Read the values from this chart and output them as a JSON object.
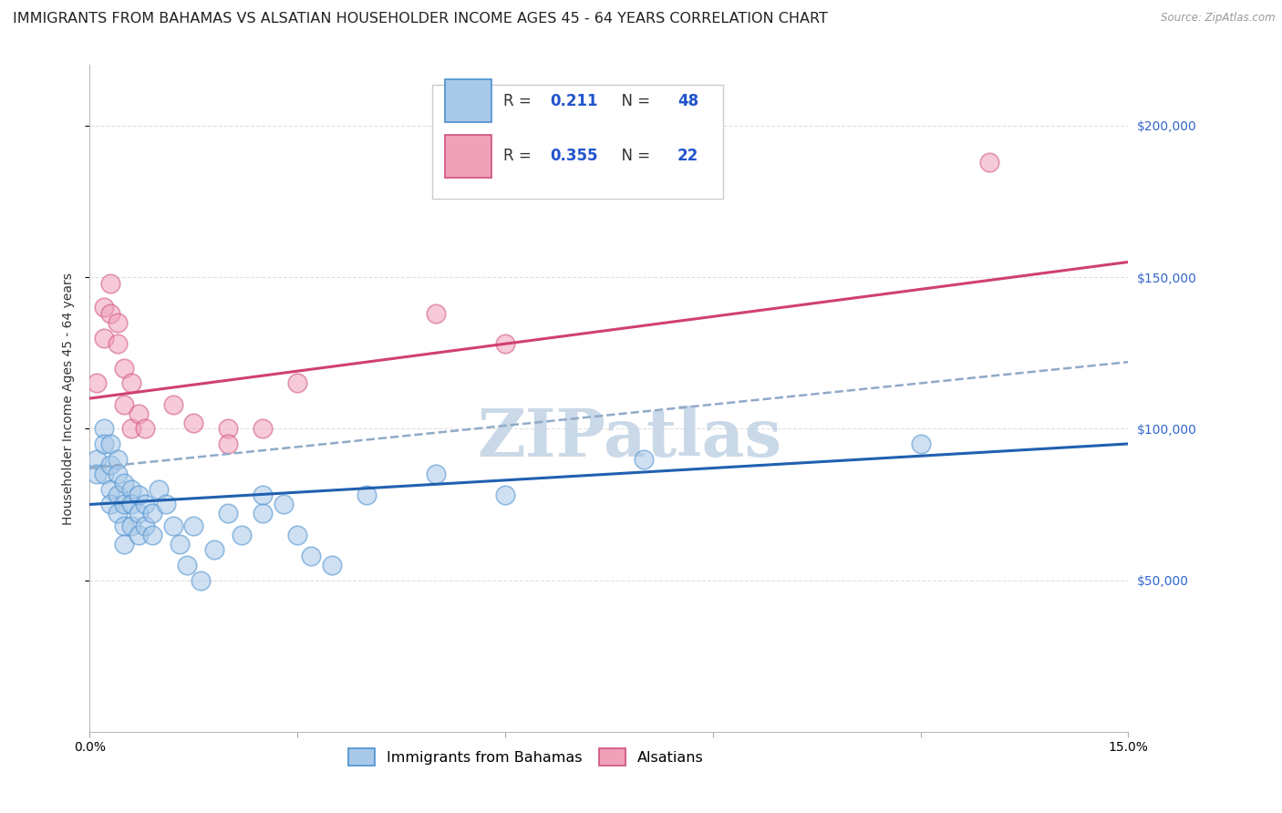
{
  "title": "IMMIGRANTS FROM BAHAMAS VS ALSATIAN HOUSEHOLDER INCOME AGES 45 - 64 YEARS CORRELATION CHART",
  "source": "Source: ZipAtlas.com",
  "ylabel": "Householder Income Ages 45 - 64 years",
  "xlim": [
    0,
    0.15
  ],
  "ylim": [
    0,
    220000
  ],
  "xticks": [
    0.0,
    0.03,
    0.06,
    0.09,
    0.12,
    0.15
  ],
  "xtick_labels": [
    "0.0%",
    "",
    "",
    "",
    "",
    "15.0%"
  ],
  "ytick_positions": [
    50000,
    100000,
    150000,
    200000
  ],
  "ytick_labels": [
    "$50,000",
    "$100,000",
    "$150,000",
    "$200,000"
  ],
  "legend_R_blue": "0.211",
  "legend_N_blue": "48",
  "legend_R_pink": "0.355",
  "legend_N_pink": "22",
  "blue_fill": "#a8c8e8",
  "blue_edge": "#4a90d0",
  "pink_fill": "#f0a0b8",
  "pink_edge": "#d05080",
  "blue_line_color": "#2060b0",
  "pink_line_color": "#d04070",
  "dashed_line_color": "#90aac8",
  "watermark": "ZIPatlas",
  "blue_scatter_x": [
    0.001,
    0.001,
    0.002,
    0.002,
    0.002,
    0.003,
    0.003,
    0.003,
    0.003,
    0.004,
    0.004,
    0.004,
    0.004,
    0.005,
    0.005,
    0.005,
    0.005,
    0.006,
    0.006,
    0.006,
    0.007,
    0.007,
    0.007,
    0.008,
    0.008,
    0.009,
    0.009,
    0.01,
    0.011,
    0.012,
    0.013,
    0.014,
    0.015,
    0.016,
    0.018,
    0.02,
    0.022,
    0.025,
    0.025,
    0.028,
    0.03,
    0.032,
    0.035,
    0.04,
    0.05,
    0.06,
    0.08,
    0.12
  ],
  "blue_scatter_y": [
    90000,
    85000,
    100000,
    95000,
    85000,
    88000,
    95000,
    80000,
    75000,
    90000,
    85000,
    78000,
    72000,
    82000,
    75000,
    68000,
    62000,
    80000,
    75000,
    68000,
    78000,
    72000,
    65000,
    75000,
    68000,
    72000,
    65000,
    80000,
    75000,
    68000,
    62000,
    55000,
    68000,
    50000,
    60000,
    72000,
    65000,
    78000,
    72000,
    75000,
    65000,
    58000,
    55000,
    78000,
    85000,
    78000,
    90000,
    95000
  ],
  "pink_scatter_x": [
    0.001,
    0.002,
    0.002,
    0.003,
    0.003,
    0.004,
    0.004,
    0.005,
    0.005,
    0.006,
    0.006,
    0.007,
    0.008,
    0.012,
    0.015,
    0.02,
    0.02,
    0.025,
    0.03,
    0.05,
    0.06,
    0.13
  ],
  "pink_scatter_y": [
    115000,
    140000,
    130000,
    148000,
    138000,
    135000,
    128000,
    120000,
    108000,
    115000,
    100000,
    105000,
    100000,
    108000,
    102000,
    100000,
    95000,
    100000,
    115000,
    138000,
    128000,
    188000
  ],
  "blue_trend_x": [
    0.0,
    0.15
  ],
  "blue_trend_y": [
    75000,
    95000
  ],
  "pink_trend_x": [
    0.0,
    0.15
  ],
  "pink_trend_y": [
    110000,
    155000
  ],
  "dashed_trend_x": [
    0.0,
    0.15
  ],
  "dashed_trend_y": [
    87000,
    122000
  ],
  "title_fontsize": 11.5,
  "axis_label_fontsize": 10,
  "tick_fontsize": 10,
  "legend_fontsize": 12,
  "watermark_fontsize": 52,
  "watermark_color": "#c5d5e5",
  "background_color": "#ffffff",
  "grid_color": "#d8d8d8"
}
